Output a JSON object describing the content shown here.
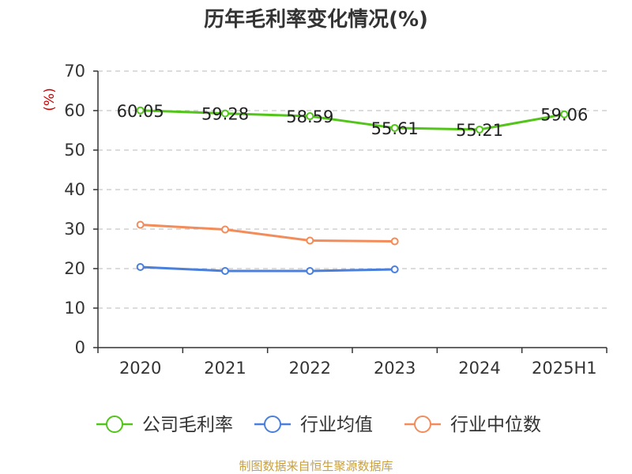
{
  "chart_data": {
    "type": "line",
    "title": "历年毛利率变化情况(%)",
    "ylabel": "(%)",
    "xlabel": "",
    "categories": [
      "2020",
      "2021",
      "2022",
      "2023",
      "2024",
      "2025H1"
    ],
    "ylim": [
      0,
      70
    ],
    "yticks": [
      "0",
      "10",
      "20",
      "30",
      "40",
      "50",
      "60",
      "70"
    ],
    "grid": true,
    "legend_position": "bottom",
    "series": [
      {
        "name": "公司毛利率",
        "color": "#52c41a",
        "values": [
          60.05,
          59.28,
          58.59,
          55.61,
          55.21,
          59.06
        ],
        "labels": [
          "60.05",
          "59.28",
          "58.59",
          "55.61",
          "55.21",
          "59.06"
        ]
      },
      {
        "name": "行业均值",
        "color": "#4a7fdc",
        "values": [
          20.4,
          19.4,
          19.4,
          19.8,
          null,
          null
        ]
      },
      {
        "name": "行业中位数",
        "color": "#f28c5a",
        "values": [
          31.1,
          29.9,
          27.1,
          26.9,
          null,
          null
        ]
      }
    ],
    "source": "制图数据来自恒生聚源数据库"
  }
}
